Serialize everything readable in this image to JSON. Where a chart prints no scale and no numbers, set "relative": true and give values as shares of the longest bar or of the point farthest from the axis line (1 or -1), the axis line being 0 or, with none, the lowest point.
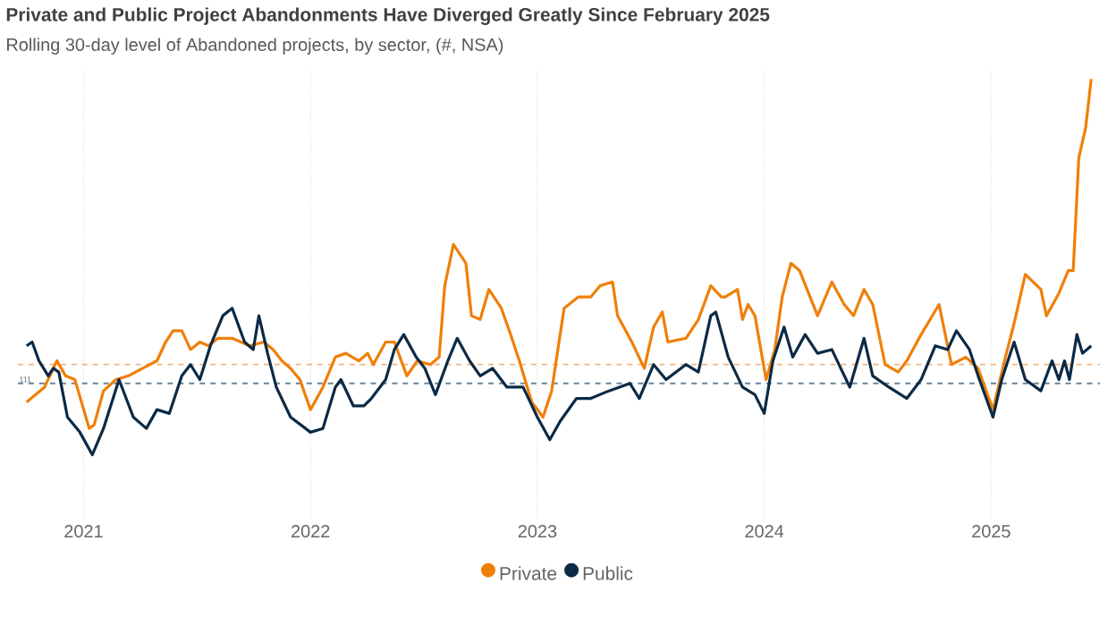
{
  "chart_data": {
    "type": "line",
    "title": "Private and Public Project Abandonments Have Diverged Greatly Since February 2025",
    "subtitle": "Rolling 30-day level of Abandoned projects, by sector, (#, NSA)",
    "relative": true,
    "grid": "x",
    "legend": "bottom",
    "marker": "none",
    "line_style": "solid",
    "xlim": [
      "2020-09-17",
      "2025-06-25"
    ],
    "xticks": [
      {
        "value": "2021-01-01",
        "label": "2021"
      },
      {
        "value": "2022-01-01",
        "label": "2022"
      },
      {
        "value": "2023-01-01",
        "label": "2023"
      },
      {
        "value": "2024-01-01",
        "label": "2024"
      },
      {
        "value": "2025-01-01",
        "label": "2025"
      }
    ],
    "ref_lines": [
      {
        "axis": "y",
        "value": 0.24,
        "label": null,
        "color": "#f5b57a",
        "line_style": "dashed"
      },
      {
        "axis": "y",
        "value": 0.19,
        "label": null,
        "color": "#6a8496",
        "line_style": "dashed"
      }
    ],
    "annotations": [
      "111"
    ],
    "series": [
      {
        "name": "Private",
        "color": "#f07f09",
        "x": [
          "2020-10-01",
          "2020-10-30",
          "2020-11-19",
          "2020-12-03",
          "2020-12-18",
          "2021-01-10",
          "2021-01-18",
          "2021-02-02",
          "2021-02-22",
          "2021-03-14",
          "2021-04-06",
          "2021-04-29",
          "2021-05-13",
          "2021-05-25",
          "2021-06-08",
          "2021-06-22",
          "2021-07-07",
          "2021-07-21",
          "2021-08-05",
          "2021-08-28",
          "2021-09-25",
          "2021-10-18",
          "2021-11-02",
          "2021-11-16",
          "2021-11-30",
          "2021-12-15",
          "2022-01-01",
          "2022-01-21",
          "2022-02-10",
          "2022-02-27",
          "2022-03-20",
          "2022-04-03",
          "2022-04-12",
          "2022-05-02",
          "2022-05-16",
          "2022-06-05",
          "2022-06-22",
          "2022-07-13",
          "2022-07-27",
          "2022-08-05",
          "2022-08-19",
          "2022-09-08",
          "2022-09-17",
          "2022-10-01",
          "2022-10-15",
          "2022-11-04",
          "2022-11-19",
          "2022-12-03",
          "2022-12-23",
          "2023-01-10",
          "2023-01-24",
          "2023-02-13",
          "2023-03-08",
          "2023-03-28",
          "2023-04-12",
          "2023-05-02",
          "2023-05-10",
          "2023-06-02",
          "2023-06-22",
          "2023-07-07",
          "2023-07-21",
          "2023-07-30",
          "2023-08-28",
          "2023-09-17",
          "2023-10-07",
          "2023-10-24",
          "2023-10-30",
          "2023-11-19",
          "2023-11-27",
          "2023-12-06",
          "2023-12-17",
          "2024-01-04",
          "2024-01-18",
          "2024-01-30",
          "2024-02-13",
          "2024-02-27",
          "2024-03-27",
          "2024-04-19",
          "2024-05-09",
          "2024-05-24",
          "2024-06-10",
          "2024-06-24",
          "2024-07-14",
          "2024-08-04",
          "2024-08-18",
          "2024-09-10",
          "2024-10-09",
          "2024-10-29",
          "2024-11-21",
          "2024-12-11",
          "2025-01-04",
          "2025-01-24",
          "2025-02-07",
          "2025-02-25",
          "2025-03-22",
          "2025-03-31",
          "2025-04-20",
          "2025-05-05",
          "2025-05-13",
          "2025-05-22",
          "2025-06-02",
          "2025-06-11"
        ],
        "values": [
          0.14,
          0.18,
          0.25,
          0.21,
          0.2,
          0.07,
          0.08,
          0.17,
          0.2,
          0.21,
          0.23,
          0.25,
          0.3,
          0.33,
          0.33,
          0.28,
          0.3,
          0.29,
          0.31,
          0.31,
          0.29,
          0.3,
          0.28,
          0.25,
          0.23,
          0.2,
          0.12,
          0.18,
          0.26,
          0.27,
          0.25,
          0.27,
          0.24,
          0.3,
          0.3,
          0.21,
          0.25,
          0.24,
          0.26,
          0.45,
          0.56,
          0.51,
          0.37,
          0.36,
          0.44,
          0.39,
          0.32,
          0.25,
          0.14,
          0.1,
          0.17,
          0.39,
          0.42,
          0.42,
          0.45,
          0.46,
          0.37,
          0.3,
          0.23,
          0.34,
          0.38,
          0.3,
          0.31,
          0.36,
          0.45,
          0.42,
          0.42,
          0.44,
          0.36,
          0.4,
          0.37,
          0.2,
          0.28,
          0.42,
          0.51,
          0.49,
          0.37,
          0.46,
          0.4,
          0.37,
          0.44,
          0.4,
          0.24,
          0.22,
          0.25,
          0.32,
          0.4,
          0.24,
          0.26,
          0.23,
          0.12,
          0.26,
          0.35,
          0.48,
          0.44,
          0.37,
          0.43,
          0.49,
          0.49,
          0.79,
          0.87,
          1.0
        ]
      },
      {
        "name": "Public",
        "color": "#0b2a45",
        "x": [
          "2020-10-01",
          "2020-10-10",
          "2020-10-21",
          "2020-11-05",
          "2020-11-13",
          "2020-11-22",
          "2020-12-06",
          "2020-12-26",
          "2021-01-15",
          "2021-02-02",
          "2021-02-27",
          "2021-03-22",
          "2021-04-12",
          "2021-04-29",
          "2021-05-19",
          "2021-06-08",
          "2021-06-22",
          "2021-07-07",
          "2021-07-24",
          "2021-08-13",
          "2021-08-28",
          "2021-09-17",
          "2021-10-01",
          "2021-10-10",
          "2021-10-24",
          "2021-11-07",
          "2021-11-30",
          "2022-01-01",
          "2022-01-21",
          "2022-02-10",
          "2022-02-19",
          "2022-03-11",
          "2022-03-28",
          "2022-04-09",
          "2022-05-02",
          "2022-05-16",
          "2022-05-31",
          "2022-06-20",
          "2022-07-04",
          "2022-07-21",
          "2022-08-10",
          "2022-08-25",
          "2022-09-14",
          "2022-10-01",
          "2022-10-21",
          "2022-11-13",
          "2022-12-09",
          "2023-01-01",
          "2023-01-21",
          "2023-02-07",
          "2023-03-05",
          "2023-03-28",
          "2023-04-26",
          "2023-05-30",
          "2023-06-14",
          "2023-07-07",
          "2023-07-27",
          "2023-08-28",
          "2023-09-17",
          "2023-10-07",
          "2023-10-15",
          "2023-11-04",
          "2023-11-27",
          "2023-12-17",
          "2024-01-01",
          "2024-01-15",
          "2024-02-02",
          "2024-02-16",
          "2024-03-07",
          "2024-03-27",
          "2024-04-19",
          "2024-05-18",
          "2024-06-10",
          "2024-06-24",
          "2024-07-20",
          "2024-08-18",
          "2024-09-10",
          "2024-10-03",
          "2024-10-23",
          "2024-11-06",
          "2024-11-27",
          "2024-12-11",
          "2025-01-04",
          "2025-01-18",
          "2025-02-07",
          "2025-02-25",
          "2025-03-22",
          "2025-04-09",
          "2025-04-20",
          "2025-04-29",
          "2025-05-07",
          "2025-05-19",
          "2025-05-28",
          "2025-06-11"
        ],
        "values": [
          0.29,
          0.3,
          0.25,
          0.21,
          0.23,
          0.22,
          0.1,
          0.06,
          0.0,
          0.07,
          0.2,
          0.1,
          0.07,
          0.12,
          0.11,
          0.21,
          0.24,
          0.2,
          0.29,
          0.37,
          0.39,
          0.3,
          0.28,
          0.37,
          0.27,
          0.18,
          0.1,
          0.06,
          0.07,
          0.18,
          0.2,
          0.13,
          0.13,
          0.15,
          0.2,
          0.28,
          0.32,
          0.26,
          0.23,
          0.16,
          0.25,
          0.31,
          0.25,
          0.21,
          0.23,
          0.18,
          0.18,
          0.1,
          0.04,
          0.09,
          0.15,
          0.15,
          0.17,
          0.19,
          0.15,
          0.24,
          0.2,
          0.24,
          0.22,
          0.37,
          0.38,
          0.26,
          0.18,
          0.16,
          0.11,
          0.25,
          0.34,
          0.26,
          0.32,
          0.27,
          0.28,
          0.18,
          0.31,
          0.21,
          0.18,
          0.15,
          0.2,
          0.29,
          0.28,
          0.33,
          0.28,
          0.21,
          0.1,
          0.2,
          0.3,
          0.2,
          0.17,
          0.25,
          0.2,
          0.25,
          0.2,
          0.32,
          0.27,
          0.29
        ]
      }
    ]
  }
}
